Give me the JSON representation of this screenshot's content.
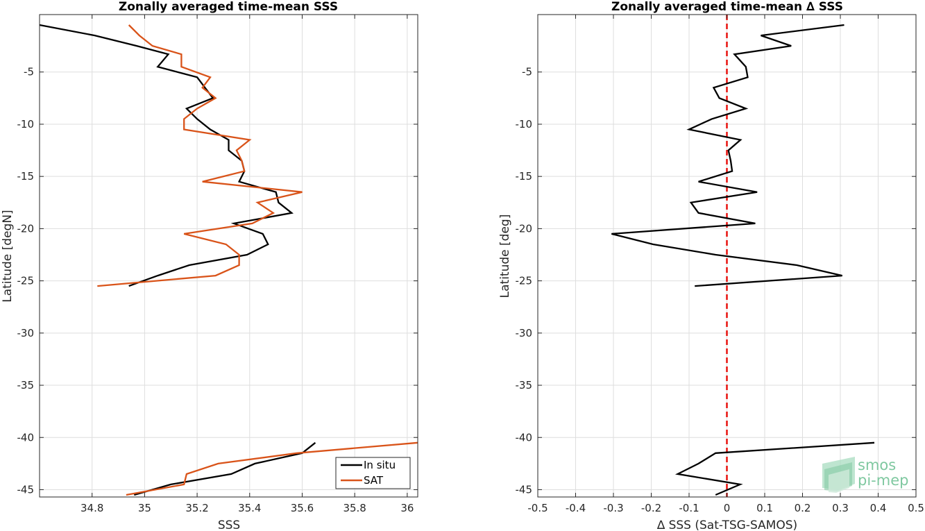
{
  "chart_data": [
    {
      "type": "line",
      "title": "Zonally averaged time-mean SSS",
      "xlabel": "SSS",
      "ylabel": "Latitude [degN]",
      "xlim": [
        34.6,
        36.04
      ],
      "ylim": [
        -45.7,
        0.5
      ],
      "xticks": [
        34.8,
        35.0,
        35.2,
        35.4,
        35.6,
        35.8,
        36.0
      ],
      "xtick_labels": [
        "34.8",
        "35",
        "35.2",
        "35.4",
        "35.6",
        "35.8",
        "36"
      ],
      "yticks": [
        -45,
        -40,
        -35,
        -30,
        -25,
        -20,
        -15,
        -10,
        -5
      ],
      "ytick_labels": [
        "-45",
        "-40",
        "-35",
        "-30",
        "-25",
        "-20",
        "-15",
        "-10",
        "-5"
      ],
      "grid": true,
      "legend_position": "bottom-right",
      "series": [
        {
          "name": "In situ",
          "color": "#000000",
          "segments": [
            [
              [
                34.6,
                -0.5
              ],
              [
                34.81,
                -1.5
              ],
              [
                34.97,
                -2.5
              ],
              [
                35.09,
                -3.3
              ],
              [
                35.05,
                -4.5
              ],
              [
                35.2,
                -5.5
              ],
              [
                35.23,
                -6.5
              ],
              [
                35.26,
                -7.5
              ],
              [
                35.16,
                -8.5
              ],
              [
                35.2,
                -9.5
              ],
              [
                35.25,
                -10.5
              ],
              [
                35.32,
                -11.5
              ],
              [
                35.32,
                -12.5
              ],
              [
                35.37,
                -13.5
              ],
              [
                35.38,
                -14.5
              ],
              [
                35.36,
                -15.5
              ],
              [
                35.5,
                -16.5
              ],
              [
                35.51,
                -17.5
              ],
              [
                35.56,
                -18.5
              ],
              [
                35.34,
                -19.5
              ],
              [
                35.45,
                -20.5
              ],
              [
                35.47,
                -21.5
              ],
              [
                35.39,
                -22.5
              ],
              [
                35.17,
                -23.5
              ],
              [
                35.05,
                -24.5
              ],
              [
                34.94,
                -25.5
              ]
            ],
            [
              [
                35.65,
                -40.5
              ],
              [
                35.6,
                -41.5
              ],
              [
                35.42,
                -42.5
              ],
              [
                35.33,
                -43.5
              ],
              [
                35.1,
                -44.5
              ],
              [
                34.96,
                -45.5
              ]
            ]
          ]
        },
        {
          "name": "SAT",
          "color": "#d95319",
          "segments": [
            [
              [
                34.94,
                -0.5
              ],
              [
                34.98,
                -1.5
              ],
              [
                35.03,
                -2.5
              ],
              [
                35.14,
                -3.3
              ],
              [
                35.14,
                -4.5
              ],
              [
                35.25,
                -5.5
              ],
              [
                35.22,
                -6.5
              ],
              [
                35.27,
                -7.5
              ],
              [
                35.2,
                -8.5
              ],
              [
                35.15,
                -9.5
              ],
              [
                35.15,
                -10.5
              ],
              [
                35.4,
                -11.5
              ],
              [
                35.35,
                -12.5
              ],
              [
                35.37,
                -13.5
              ],
              [
                35.38,
                -14.5
              ],
              [
                35.22,
                -15.5
              ],
              [
                35.6,
                -16.5
              ],
              [
                35.43,
                -17.5
              ],
              [
                35.49,
                -18.5
              ],
              [
                35.41,
                -19.5
              ],
              [
                35.15,
                -20.5
              ],
              [
                35.31,
                -21.5
              ],
              [
                35.36,
                -22.5
              ],
              [
                35.36,
                -23.5
              ],
              [
                35.27,
                -24.5
              ],
              [
                34.82,
                -25.5
              ]
            ],
            [
              [
                36.04,
                -40.5
              ],
              [
                35.58,
                -41.5
              ],
              [
                35.28,
                -42.5
              ],
              [
                35.16,
                -43.5
              ],
              [
                35.15,
                -44.5
              ],
              [
                34.93,
                -45.5
              ]
            ]
          ]
        }
      ]
    },
    {
      "type": "line",
      "title": "Zonally averaged time-mean ∆ SSS",
      "xlabel": "∆ SSS (Sat-TSG-SAMOS)",
      "ylabel": "Latitude [deg]",
      "xlim": [
        -0.5,
        0.5
      ],
      "ylim": [
        -45.7,
        0.5
      ],
      "xticks": [
        -0.5,
        -0.4,
        -0.3,
        -0.2,
        -0.1,
        0,
        0.1,
        0.2,
        0.3,
        0.4,
        0.5
      ],
      "xtick_labels": [
        "-0.5",
        "-0.4",
        "-0.3",
        "-0.2",
        "-0.1",
        "0",
        "0.1",
        "0.2",
        "0.3",
        "0.4",
        "0.5"
      ],
      "yticks": [
        -45,
        -40,
        -35,
        -30,
        -25,
        -20,
        -15,
        -10,
        -5
      ],
      "ytick_labels": [
        "-45",
        "-40",
        "-35",
        "-30",
        "-25",
        "-20",
        "-15",
        "-10",
        "-5"
      ],
      "grid": true,
      "reference_line": {
        "x": 0,
        "color": "#e8120f",
        "style": "dashed"
      },
      "series": [
        {
          "color": "#000000",
          "segments": [
            [
              [
                0.31,
                -0.5
              ],
              [
                0.09,
                -1.5
              ],
              [
                0.17,
                -2.5
              ],
              [
                0.02,
                -3.3
              ],
              [
                0.05,
                -4.5
              ],
              [
                0.055,
                -5.5
              ],
              [
                -0.035,
                -6.5
              ],
              [
                -0.02,
                -7.5
              ],
              [
                0.05,
                -8.5
              ],
              [
                -0.04,
                -9.5
              ],
              [
                -0.1,
                -10.5
              ],
              [
                0.036,
                -11.5
              ],
              [
                0.004,
                -12.5
              ],
              [
                0.01,
                -13.5
              ],
              [
                0.014,
                -14.5
              ],
              [
                -0.075,
                -15.5
              ],
              [
                0.08,
                -16.5
              ],
              [
                -0.095,
                -17.5
              ],
              [
                -0.075,
                -18.5
              ],
              [
                0.075,
                -19.5
              ],
              [
                -0.305,
                -20.5
              ],
              [
                -0.195,
                -21.5
              ],
              [
                -0.03,
                -22.5
              ],
              [
                0.185,
                -23.5
              ],
              [
                0.305,
                -24.5
              ],
              [
                -0.085,
                -25.5
              ]
            ],
            [
              [
                0.39,
                -40.5
              ],
              [
                -0.03,
                -41.5
              ],
              [
                -0.075,
                -42.5
              ],
              [
                -0.13,
                -43.5
              ],
              [
                0.035,
                -44.5
              ],
              [
                -0.03,
                -45.5
              ]
            ]
          ]
        }
      ]
    }
  ],
  "logo": {
    "line1": "smos",
    "line2": "pi-mep"
  }
}
